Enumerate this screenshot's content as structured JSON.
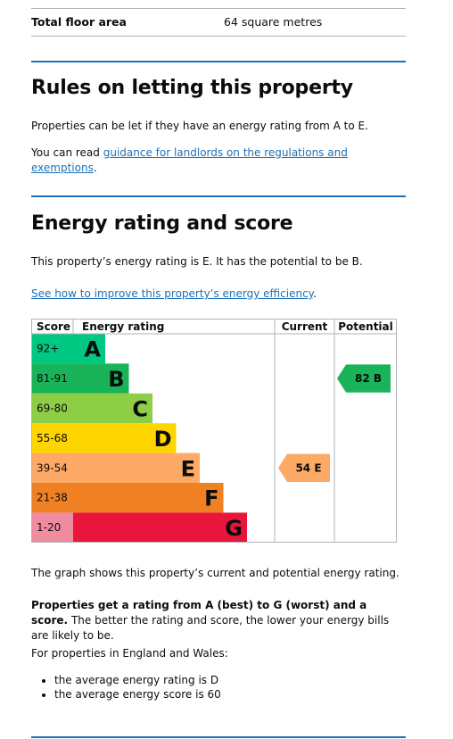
{
  "summary": {
    "key": "Total floor area",
    "value": "64 square metres"
  },
  "letting": {
    "heading": "Rules on letting this property",
    "p1": "Properties can be let if they have an energy rating from A to E.",
    "p2_prefix": "You can read ",
    "p2_link": "guidance for landlords on the regulations and exemptions",
    "p2_suffix": "."
  },
  "energy": {
    "heading": "Energy rating and score",
    "p1": "This property’s energy rating is E. It has the potential to be B.",
    "link": "See how to improve this property’s energy efficiency",
    "link_suffix": ".",
    "caption": "The graph shows this property’s current and potential energy rating.",
    "bold_text": "Properties get a rating from A (best) to G (worst) and a score.",
    "rest_text": " The better the rating and score, the lower your energy bills are likely to be.",
    "england_intro": "For properties in England and Wales:",
    "bullets": [
      "the average energy rating is D",
      "the average energy score is 60"
    ]
  },
  "chart_data": {
    "type": "table",
    "headers": {
      "score": "Score",
      "rating": "Energy rating",
      "current": "Current",
      "potential": "Potential"
    },
    "bands": [
      {
        "range": "92+",
        "letter": "A",
        "color": "#00c781",
        "score_bg": "#00c781"
      },
      {
        "range": "81-91",
        "letter": "B",
        "color": "#19b459",
        "score_bg": "#19b459"
      },
      {
        "range": "69-80",
        "letter": "C",
        "color": "#8dce46",
        "score_bg": "#8dce46"
      },
      {
        "range": "55-68",
        "letter": "D",
        "color": "#ffd500",
        "score_bg": "#ffd500"
      },
      {
        "range": "39-54",
        "letter": "E",
        "color": "#fcaa65",
        "score_bg": "#fcaa65"
      },
      {
        "range": "21-38",
        "letter": "F",
        "color": "#ef8023",
        "score_bg": "#ef8023"
      },
      {
        "range": "1-20",
        "letter": "G",
        "color": "#e9153b",
        "score_bg": "#f08c9f"
      }
    ],
    "current": {
      "score": 54,
      "band": "E",
      "label": "54 E",
      "color": "#fcaa65"
    },
    "potential": {
      "score": 82,
      "band": "B",
      "label": "82 B",
      "color": "#19b459"
    }
  }
}
